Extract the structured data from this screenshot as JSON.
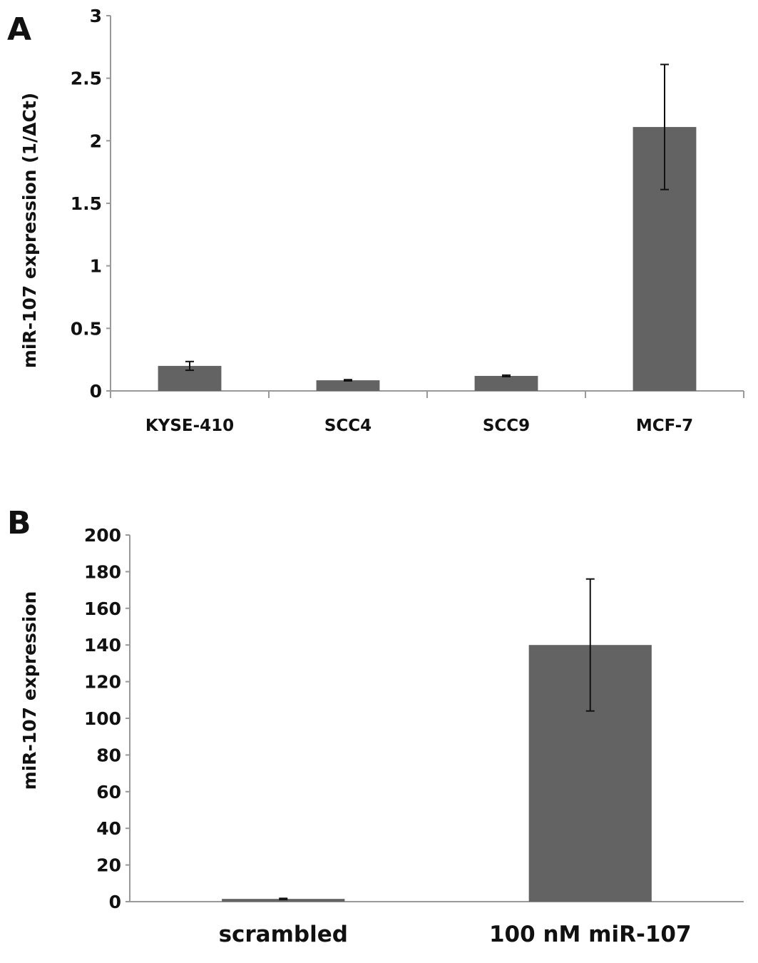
{
  "chart_data": [
    {
      "panel": "A",
      "type": "bar",
      "title": "",
      "xlabel": "",
      "ylabel": "miR-107 expression (1/ΔCt)",
      "ylim": [
        0,
        3
      ],
      "yticks": [
        "0",
        "0.5",
        "1",
        "1.5",
        "2",
        "2.5",
        "3"
      ],
      "categories": [
        "KYSE-410",
        "SCC4",
        "SCC9",
        "MCF-7"
      ],
      "values": [
        0.2,
        0.085,
        0.12,
        2.11
      ],
      "errors": [
        0.035,
        0.005,
        0.006,
        0.5
      ],
      "bar_color": "#636363",
      "grid": false
    },
    {
      "panel": "B",
      "type": "bar",
      "title": "",
      "xlabel": "",
      "ylabel": "miR-107 expression",
      "ylim": [
        0,
        200
      ],
      "yticks": [
        "0",
        "20",
        "40",
        "60",
        "80",
        "100",
        "120",
        "140",
        "160",
        "180",
        "200"
      ],
      "categories": [
        "scrambled",
        "100 nM miR-107"
      ],
      "values": [
        1.5,
        140
      ],
      "errors": [
        0.3,
        36
      ],
      "bar_color": "#636363",
      "grid": false
    }
  ]
}
